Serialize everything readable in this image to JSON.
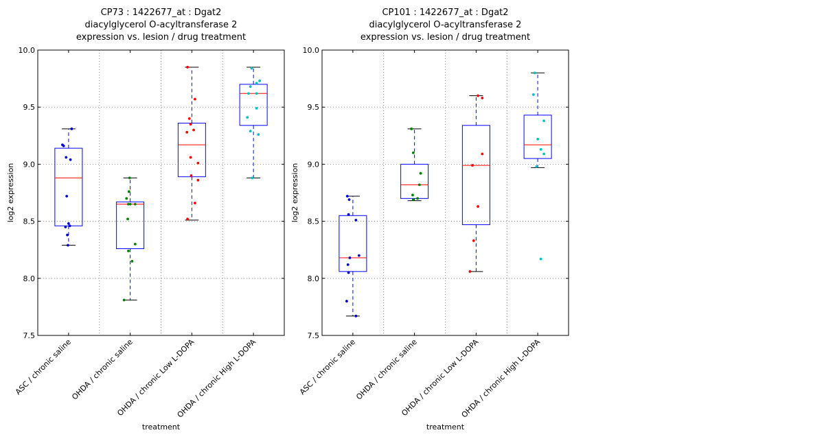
{
  "chart_data": [
    {
      "type": "box",
      "title": [
        "CP73 : 1422677_at : Dgat2",
        "diacylglycerol O-acyltransferase 2",
        "expression vs. lesion / drug treatment"
      ],
      "xlabel": "treatment",
      "ylabel": "log2 expression",
      "ylim": [
        7.5,
        10.0
      ],
      "yticks": [
        "7.5",
        "8.0",
        "8.5",
        "9.0",
        "9.5",
        "10.0"
      ],
      "categories": [
        "ASC / chronic saline",
        "OHDA / chronic saline",
        "OHDA / chronic Low L-DOPA",
        "OHDA / chronic High L-DOPA"
      ],
      "grid": true,
      "series": [
        {
          "color": "#0000cc",
          "box": {
            "whislo": 8.29,
            "q1": 8.46,
            "median": 8.88,
            "q3": 9.14,
            "whishi": 9.31
          },
          "points": [
            [
              -0.1,
              9.17
            ],
            [
              -0.08,
              9.16
            ],
            [
              0.05,
              9.31
            ],
            [
              -0.04,
              9.06
            ],
            [
              0.03,
              9.04
            ],
            [
              -0.03,
              8.72
            ],
            [
              0.0,
              8.48
            ],
            [
              0.02,
              8.46
            ],
            [
              -0.05,
              8.45
            ],
            [
              -0.02,
              8.38
            ],
            [
              -0.01,
              8.29
            ]
          ]
        },
        {
          "color": "#008000",
          "box": {
            "whislo": 7.81,
            "q1": 8.26,
            "median": 8.65,
            "q3": 8.67,
            "whishi": 8.88
          },
          "points": [
            [
              -0.01,
              8.88
            ],
            [
              -0.02,
              8.76
            ],
            [
              -0.06,
              8.7
            ],
            [
              -0.03,
              8.65
            ],
            [
              0.0,
              8.65
            ],
            [
              0.08,
              8.65
            ],
            [
              -0.04,
              8.52
            ],
            [
              0.08,
              8.3
            ],
            [
              -0.03,
              8.24
            ],
            [
              0.03,
              8.15
            ],
            [
              -0.1,
              7.81
            ]
          ]
        },
        {
          "color": "#ff0000",
          "box": {
            "whislo": 8.51,
            "q1": 8.89,
            "median": 9.17,
            "q3": 9.36,
            "whishi": 9.85
          },
          "points": [
            [
              -0.07,
              9.85
            ],
            [
              0.05,
              9.57
            ],
            [
              -0.04,
              9.4
            ],
            [
              -0.02,
              9.35
            ],
            [
              0.03,
              9.3
            ],
            [
              -0.08,
              9.28
            ],
            [
              0.1,
              9.01
            ],
            [
              -0.02,
              9.06
            ],
            [
              -0.01,
              8.9
            ],
            [
              0.1,
              8.86
            ],
            [
              0.05,
              8.66
            ],
            [
              -0.07,
              8.52
            ]
          ]
        },
        {
          "color": "#00bfbf",
          "box": {
            "whislo": 8.88,
            "q1": 9.34,
            "median": 9.62,
            "q3": 9.7,
            "whishi": 9.85
          },
          "points": [
            [
              -0.03,
              9.84
            ],
            [
              0.1,
              9.73
            ],
            [
              0.05,
              9.71
            ],
            [
              -0.05,
              9.68
            ],
            [
              -0.08,
              9.62
            ],
            [
              0.05,
              9.62
            ],
            [
              0.05,
              9.49
            ],
            [
              -0.1,
              9.41
            ],
            [
              -0.05,
              9.29
            ],
            [
              0.08,
              9.26
            ],
            [
              -0.02,
              8.88
            ]
          ]
        }
      ]
    },
    {
      "type": "box",
      "title": [
        "CP101 : 1422677_at : Dgat2",
        "diacylglycerol O-acyltransferase 2",
        "expression vs. lesion / drug treatment"
      ],
      "xlabel": "treatment",
      "ylabel": "log2 expression",
      "ylim": [
        7.5,
        10.0
      ],
      "yticks": [
        "7.5",
        "8.0",
        "8.5",
        "9.0",
        "9.5",
        "10.0"
      ],
      "categories": [
        "ASC / chronic saline",
        "OHDA / chronic saline",
        "OHDA / chronic Low L-DOPA",
        "OHDA / chronic High L-DOPA"
      ],
      "grid": true,
      "series": [
        {
          "color": "#0000cc",
          "box": {
            "whislo": 7.67,
            "q1": 8.06,
            "median": 8.18,
            "q3": 8.55,
            "whishi": 8.72
          },
          "points": [
            [
              -0.09,
              8.72
            ],
            [
              -0.06,
              8.69
            ],
            [
              -0.07,
              8.56
            ],
            [
              0.05,
              8.51
            ],
            [
              0.1,
              8.2
            ],
            [
              -0.05,
              8.18
            ],
            [
              -0.08,
              8.12
            ],
            [
              -0.07,
              8.05
            ],
            [
              -0.1,
              7.8
            ],
            [
              0.05,
              7.67
            ]
          ]
        },
        {
          "color": "#008000",
          "box": {
            "whislo": 8.68,
            "q1": 8.7,
            "median": 8.82,
            "q3": 9.0,
            "whishi": 9.31
          },
          "points": [
            [
              -0.05,
              9.31
            ],
            [
              -0.02,
              9.1
            ],
            [
              0.1,
              8.92
            ],
            [
              0.08,
              8.82
            ],
            [
              -0.03,
              8.73
            ],
            [
              0.05,
              8.7
            ],
            [
              -0.02,
              8.69
            ]
          ]
        },
        {
          "color": "#ff0000",
          "box": {
            "whislo": 8.06,
            "q1": 8.47,
            "median": 8.99,
            "q3": 9.34,
            "whishi": 9.6
          },
          "points": [
            [
              0.03,
              9.6
            ],
            [
              0.1,
              9.58
            ],
            [
              0.1,
              9.09
            ],
            [
              -0.06,
              8.99
            ],
            [
              0.03,
              8.63
            ],
            [
              -0.04,
              8.33
            ],
            [
              -0.1,
              8.06
            ]
          ]
        },
        {
          "color": "#00bfbf",
          "box": {
            "whislo": 8.97,
            "q1": 9.05,
            "median": 9.17,
            "q3": 9.43,
            "whishi": 9.8
          },
          "points": [
            [
              -0.05,
              9.8
            ],
            [
              -0.07,
              9.61
            ],
            [
              0.1,
              9.38
            ],
            [
              0.0,
              9.22
            ],
            [
              0.05,
              9.13
            ],
            [
              0.1,
              9.09
            ],
            [
              -0.02,
              8.98
            ],
            [
              0.05,
              8.17
            ]
          ]
        }
      ]
    }
  ]
}
